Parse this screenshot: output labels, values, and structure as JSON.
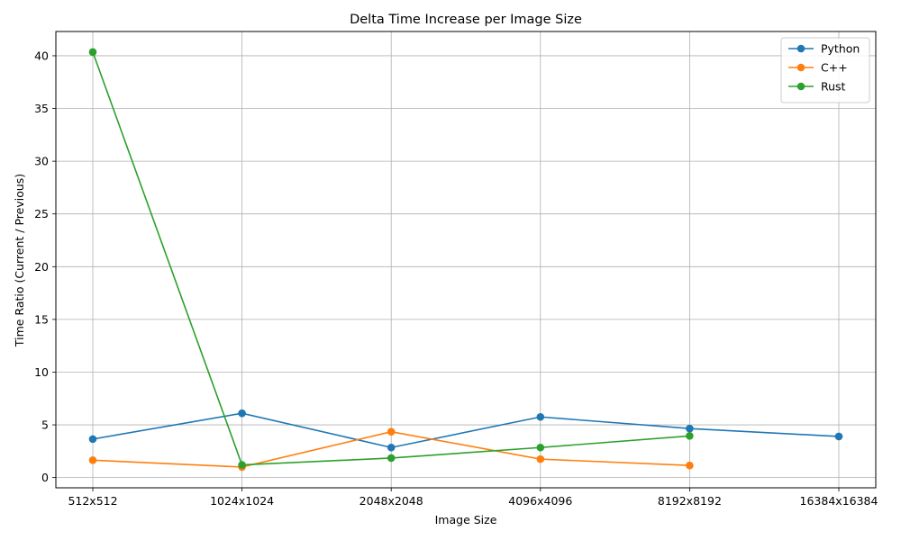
{
  "chart_data": {
    "type": "line",
    "title": "Delta Time Increase per Image Size",
    "xlabel": "Image Size",
    "ylabel": "Time Ratio (Current / Previous)",
    "categories": [
      "512x512",
      "1024x1024",
      "2048x2048",
      "4096x4096",
      "8192x8192",
      "16384x16384"
    ],
    "ylim": [
      -0.97,
      42.3
    ],
    "yticks": [
      0,
      5,
      10,
      15,
      20,
      25,
      30,
      35,
      40
    ],
    "grid": true,
    "legend_position": "top-right",
    "series": [
      {
        "name": "Python",
        "color": "#1f77b4",
        "values": [
          3.65,
          6.1,
          2.85,
          5.75,
          4.65,
          3.9
        ]
      },
      {
        "name": "C++",
        "color": "#ff7f0e",
        "values": [
          1.65,
          1.0,
          4.35,
          1.75,
          1.15,
          null
        ]
      },
      {
        "name": "Rust",
        "color": "#2ca02c",
        "values": [
          40.35,
          1.2,
          1.85,
          2.85,
          3.95,
          null
        ]
      }
    ]
  }
}
